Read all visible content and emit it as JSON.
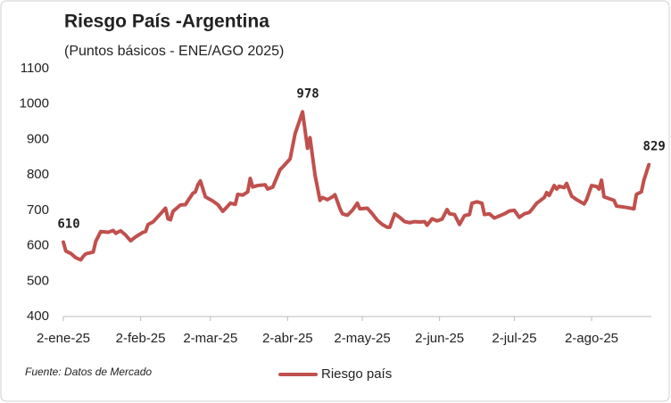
{
  "chart_data": {
    "type": "line",
    "title": "Riesgo País -Argentina",
    "subtitle": "(Puntos básicos - ENE/AGO 2025)",
    "source": "Fuente: Datos de Mercado",
    "x": [
      "2025-01-02",
      "2025-01-03",
      "2025-01-05",
      "2025-01-07",
      "2025-01-09",
      "2025-01-10",
      "2025-01-11",
      "2025-01-14",
      "2025-01-15",
      "2025-01-17",
      "2025-01-20",
      "2025-01-22",
      "2025-01-23",
      "2025-01-25",
      "2025-01-27",
      "2025-01-29",
      "2025-01-31",
      "2025-02-03",
      "2025-02-04",
      "2025-02-05",
      "2025-02-07",
      "2025-02-10",
      "2025-02-12",
      "2025-02-13",
      "2025-02-14",
      "2025-02-15",
      "2025-02-18",
      "2025-02-20",
      "2025-02-21",
      "2025-02-23",
      "2025-02-24",
      "2025-02-25",
      "2025-02-26",
      "2025-02-28",
      "2025-03-03",
      "2025-03-05",
      "2025-03-07",
      "2025-03-09",
      "2025-03-10",
      "2025-03-12",
      "2025-03-13",
      "2025-03-15",
      "2025-03-17",
      "2025-03-18",
      "2025-03-19",
      "2025-03-21",
      "2025-03-24",
      "2025-03-25",
      "2025-03-27",
      "2025-03-30",
      "2025-03-31",
      "2025-04-03",
      "2025-04-05",
      "2025-04-08",
      "2025-04-10",
      "2025-04-11",
      "2025-04-13",
      "2025-04-15",
      "2025-04-16",
      "2025-04-18",
      "2025-04-20",
      "2025-04-21",
      "2025-04-23",
      "2025-04-24",
      "2025-04-26",
      "2025-04-28",
      "2025-04-30",
      "2025-05-01",
      "2025-05-04",
      "2025-05-06",
      "2025-05-08",
      "2025-05-10",
      "2025-05-12",
      "2025-05-13",
      "2025-05-15",
      "2025-05-17",
      "2025-05-19",
      "2025-05-21",
      "2025-05-23",
      "2025-05-25",
      "2025-05-27",
      "2025-05-28",
      "2025-05-30",
      "2025-06-01",
      "2025-06-03",
      "2025-06-05",
      "2025-06-06",
      "2025-06-08",
      "2025-06-10",
      "2025-06-12",
      "2025-06-14",
      "2025-06-15",
      "2025-06-17",
      "2025-06-19",
      "2025-06-20",
      "2025-06-22",
      "2025-06-24",
      "2025-06-28",
      "2025-06-30",
      "2025-07-02",
      "2025-07-04",
      "2025-07-06",
      "2025-07-08",
      "2025-07-09",
      "2025-07-11",
      "2025-07-14",
      "2025-07-15",
      "2025-07-16",
      "2025-07-18",
      "2025-07-19",
      "2025-07-20",
      "2025-07-22",
      "2025-07-23",
      "2025-07-25",
      "2025-07-27",
      "2025-07-28",
      "2025-07-30",
      "2025-07-31",
      "2025-08-02",
      "2025-08-04",
      "2025-08-05",
      "2025-08-06",
      "2025-08-07",
      "2025-08-09",
      "2025-08-11",
      "2025-08-12",
      "2025-08-14",
      "2025-08-16",
      "2025-08-19",
      "2025-08-20",
      "2025-08-22",
      "2025-08-23",
      "2025-08-25"
    ],
    "series": [
      {
        "name": "Riesgo país",
        "color": "#c0504d",
        "values": [
          610,
          585,
          578,
          566,
          560,
          570,
          577,
          582,
          612,
          640,
          638,
          643,
          635,
          642,
          630,
          614,
          625,
          638,
          640,
          660,
          667,
          690,
          706,
          676,
          673,
          697,
          715,
          716,
          727,
          748,
          752,
          772,
          783,
          738,
          726,
          716,
          697,
          712,
          720,
          717,
          745,
          743,
          752,
          790,
          766,
          770,
          772,
          760,
          765,
          815,
          822,
          845,
          916,
          978,
          875,
          905,
          800,
          728,
          736,
          730,
          738,
          744,
          705,
          690,
          686,
          700,
          720,
          704,
          706,
          690,
          672,
          660,
          652,
          652,
          690,
          680,
          668,
          665,
          668,
          667,
          668,
          658,
          676,
          670,
          675,
          702,
          690,
          688,
          660,
          685,
          688,
          720,
          724,
          720,
          688,
          690,
          678,
          690,
          698,
          700,
          680,
          690,
          694,
          702,
          720,
          736,
          750,
          742,
          770,
          760,
          768,
          764,
          776,
          740,
          730,
          726,
          718,
          730,
          770,
          767,
          760,
          785,
          738,
          733,
          728,
          712,
          710,
          708,
          704,
          745,
          752,
          785,
          829
        ],
        "value_labels": [
          "610",
          null,
          null,
          null,
          null,
          null,
          null,
          null,
          null,
          null,
          null,
          null,
          null,
          null,
          null,
          null,
          null,
          null,
          null,
          null,
          null,
          null,
          null,
          null,
          null,
          null,
          null,
          null,
          null,
          null,
          null,
          null,
          null,
          null,
          null,
          null,
          null,
          null,
          null,
          null,
          null,
          null,
          null,
          null,
          null,
          null,
          null,
          null,
          null,
          null,
          null,
          null,
          null,
          "978",
          null,
          null,
          null,
          null,
          null,
          null,
          null,
          null,
          null,
          null,
          null,
          null,
          null,
          null,
          null,
          null,
          null,
          null,
          null,
          null,
          null,
          null,
          null,
          null,
          null,
          null,
          null,
          null,
          null,
          null,
          null,
          null,
          null,
          null,
          null,
          null,
          null,
          null,
          null,
          null,
          null,
          null,
          null,
          null,
          null,
          null,
          null,
          null,
          null,
          null,
          null,
          null,
          null,
          null,
          null,
          null,
          null,
          null,
          null,
          null,
          null,
          null,
          null,
          null,
          null,
          null,
          null,
          null,
          null,
          null,
          null,
          null,
          null,
          null,
          null,
          null,
          null,
          null,
          "829"
        ]
      }
    ],
    "xlim": [
      "2025-01-02",
      "2025-08-26"
    ],
    "xticks": [
      {
        "value": "2025-01-02",
        "label": "2-ene-25"
      },
      {
        "value": "2025-02-02",
        "label": "2-feb-25"
      },
      {
        "value": "2025-03-02",
        "label": "2-mar-25"
      },
      {
        "value": "2025-04-02",
        "label": "2-abr-25"
      },
      {
        "value": "2025-05-02",
        "label": "2-may-25"
      },
      {
        "value": "2025-06-02",
        "label": "2-jun-25"
      },
      {
        "value": "2025-07-02",
        "label": "2-jul-25"
      },
      {
        "value": "2025-08-02",
        "label": "2-ago-25"
      }
    ],
    "ylim": [
      400,
      1100
    ],
    "yticks": [
      400,
      500,
      600,
      700,
      800,
      900,
      1000,
      1100
    ],
    "grid": false,
    "legend": "bottom"
  }
}
